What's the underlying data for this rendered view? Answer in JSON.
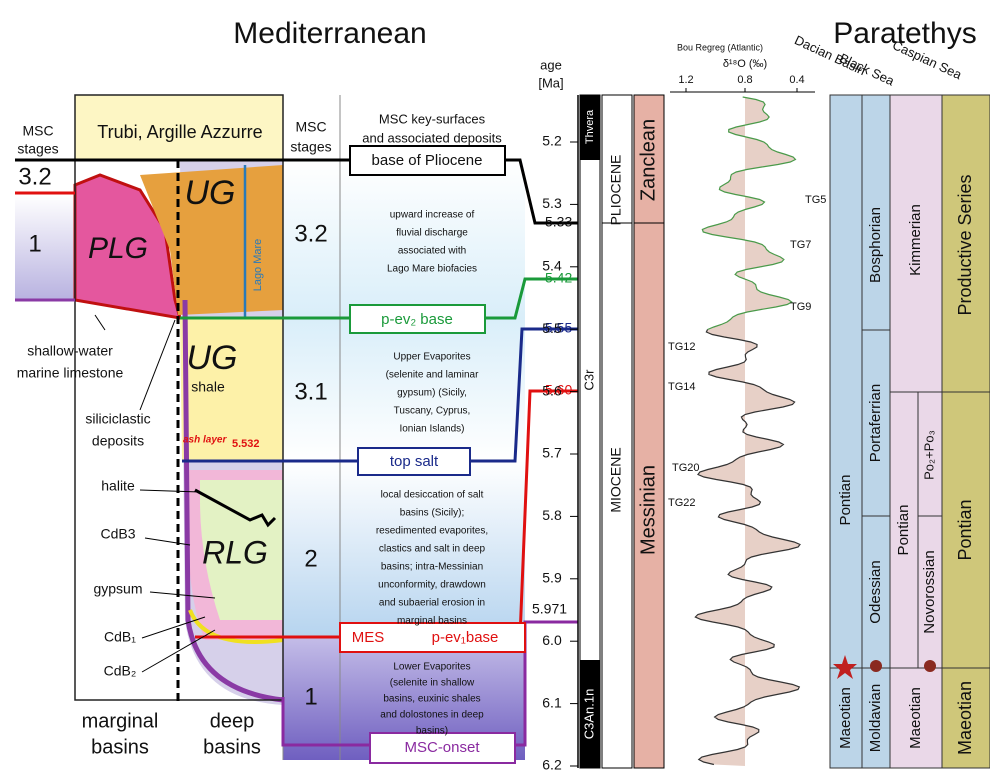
{
  "titles": {
    "mediterranean": "Mediterranean",
    "paratethys": "Paratethys"
  },
  "marginal_panel": {
    "stages_label": [
      "MSC",
      "stages"
    ],
    "header": "Trubi, Argille Azzurre",
    "stages": [
      "3.2",
      "1"
    ],
    "units": {
      "plg": "PLG",
      "ug_upper": "UG",
      "lago_mare": "Lago Mare",
      "ug_lower": "UG",
      "shale": "shale",
      "ash_layer": "ash layer",
      "ash_age": "5.532",
      "rlg": "RLG"
    },
    "annotations": {
      "halite": "halite",
      "cdb3": "CdB3",
      "gypsum": "gypsum",
      "cdb1": "CdB₁",
      "cdb2": "CdB₂",
      "limestone": [
        "shallow-water",
        "marine limestone"
      ],
      "siliciclastic": [
        "siliciclastic",
        "deposits"
      ]
    },
    "footer": {
      "marginal": [
        "marginal",
        "basins"
      ],
      "deep": [
        "deep",
        "basins"
      ]
    }
  },
  "stage_column": {
    "header": [
      "MSC",
      "stages"
    ],
    "stages": [
      "3.2",
      "3.1",
      "2",
      "1"
    ]
  },
  "surfaces": {
    "header": [
      "MSC key-surfaces",
      "and associated deposits"
    ],
    "boxes": {
      "base_pliocene": "base of Pliocene",
      "pev2": "p-ev₂ base",
      "top_salt": "top salt",
      "mes": "MES",
      "pev1": "p-ev₁base",
      "onset": "MSC-onset"
    },
    "descriptions": [
      [
        "upward increase of",
        "fluvial discharge",
        "associated with",
        "Lago Mare biofacies"
      ],
      [
        "Upper Evaporites",
        "(selenite and laminar",
        "gypsum) (Sicily,",
        "Tuscany, Cyprus,",
        "Ionian Islands)"
      ],
      [
        "local desiccation of salt",
        "basins (Sicily);",
        "resedimented evaporites,",
        "clastics and salt in deep",
        "basins; intra-Messinian",
        "unconformity, drawdown",
        "and subaerial erosion in",
        "marginal basins"
      ],
      [
        "Lower Evaporites",
        "(selenite in shallow",
        "basins, euxinic shales",
        "and dolostones in deep",
        "basins)"
      ]
    ]
  },
  "age": {
    "label": [
      "age",
      "[Ma]"
    ],
    "ticks": [
      "5.2",
      "5.3",
      "5.4",
      "5.5",
      "5.6",
      "5.7",
      "5.8",
      "5.9",
      "6.0",
      "6.1",
      "6.2"
    ],
    "markers": {
      "base_pliocene": "5.33",
      "pev2": "5.42",
      "top_salt": "5.55",
      "mes": "5.60",
      "onset": "5.971"
    }
  },
  "chronology": {
    "magnetostratigraphy": [
      "Thvera",
      "C3r",
      "C3An.1n"
    ],
    "epochs": [
      "PLIOCENE",
      "MIOCENE"
    ],
    "stages": [
      "Zanclean",
      "Messinian"
    ]
  },
  "isotope": {
    "site": "Bou Regreg (Atlantic)",
    "axis_label": "δ¹⁸O (‰)",
    "ticks": [
      "1.2",
      "0.8",
      "0.4"
    ],
    "events": [
      "TG5",
      "TG7",
      "TG9",
      "TG12",
      "TG14",
      "TG20",
      "TG22"
    ]
  },
  "paratethys": {
    "basins": [
      "Dacian Basin",
      "Black Sea",
      "Caspian Sea"
    ],
    "dacian": [
      "Pontian",
      "Maeotian"
    ],
    "black_sea": [
      "Bosphorian",
      "Portaferrian",
      "Odessian",
      "Moldavian"
    ],
    "caspian": [
      "Kimmerian",
      "Pontian",
      "Po₂+Po₃",
      "Novorossian",
      "Maeotian"
    ],
    "productive": [
      "Productive Series",
      "Pontian",
      "Maeotian"
    ]
  }
}
